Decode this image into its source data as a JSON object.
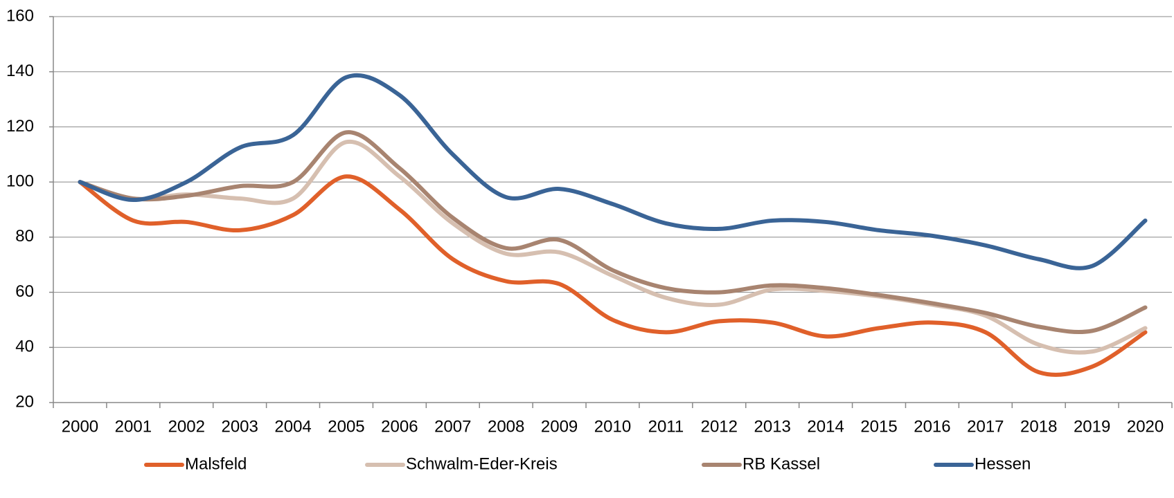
{
  "chart_data": {
    "type": "line",
    "categories": [
      "2000",
      "2001",
      "2002",
      "2003",
      "2004",
      "2005",
      "2006",
      "2007",
      "2008",
      "2009",
      "2010",
      "2011",
      "2012",
      "2013",
      "2014",
      "2015",
      "2016",
      "2017",
      "2018",
      "2019",
      "2020"
    ],
    "series": [
      {
        "name": "Malsfeld",
        "color": "#e0602a",
        "values": [
          100,
          86,
          85.5,
          82.5,
          88,
          102,
          90,
          72,
          64,
          63,
          50,
          45.5,
          49.5,
          49,
          44,
          47,
          49,
          45.5,
          31,
          33,
          45.5
        ]
      },
      {
        "name": "Schwalm-Eder-Kreis",
        "color": "#d6bfb0",
        "values": [
          100,
          94,
          95.5,
          94,
          94,
          114.5,
          102,
          85,
          74,
          74.5,
          66,
          58,
          55.5,
          61,
          60.5,
          58.5,
          55.5,
          51.5,
          41,
          38.5,
          47
        ]
      },
      {
        "name": "RB Kassel",
        "color": "#a88470",
        "values": [
          100,
          94,
          95,
          98.5,
          100,
          118,
          105,
          87,
          76,
          79,
          68,
          61.5,
          60,
          62.5,
          61.5,
          59,
          56,
          52.5,
          47.5,
          46,
          54.5
        ]
      },
      {
        "name": "Hessen",
        "color": "#3a6496",
        "values": [
          100,
          93.5,
          100,
          112.5,
          117,
          138,
          131.5,
          110,
          94.5,
          97.5,
          92,
          85,
          83,
          86,
          85.5,
          82.5,
          80.5,
          77,
          72,
          69.5,
          86
        ]
      }
    ],
    "ylim": [
      20,
      160
    ],
    "yticks": [
      20,
      40,
      60,
      80,
      100,
      120,
      140,
      160
    ],
    "grid": true,
    "legend": "bottom"
  }
}
